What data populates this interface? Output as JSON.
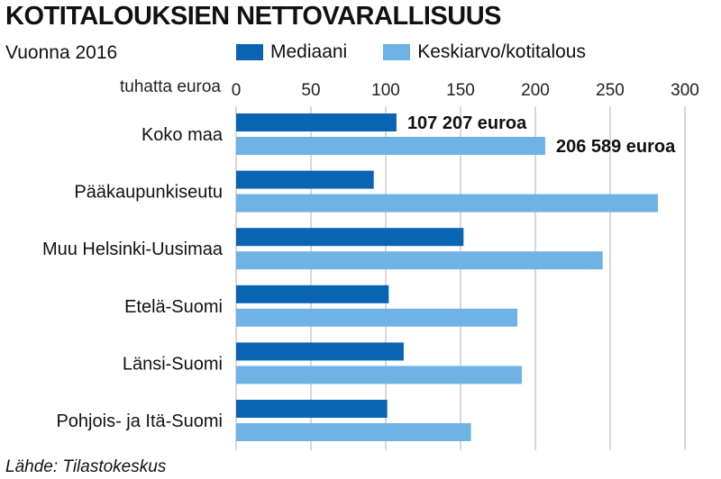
{
  "title": "KOTITALOUKSIEN NETTOVARALLISUUS",
  "subtitle": "Vuonna 2016",
  "unit_label": "tuhatta euroa",
  "source": "Lähde: Tilastokeskus",
  "colors": {
    "median": "#0a64b4",
    "mean": "#6fb3e6",
    "grid": "#b0b0b0"
  },
  "chart_data": {
    "type": "bar",
    "orientation": "horizontal",
    "title": "KOTITALOUKSIEN NETTOVARALLISUUS",
    "subtitle": "Vuonna 2016",
    "xlabel": "tuhatta euroa",
    "xlim": [
      0,
      300
    ],
    "xticks": [
      0,
      50,
      100,
      150,
      200,
      250,
      300
    ],
    "grid": true,
    "legend": "top",
    "categories": [
      "Koko maa",
      "Pääkaupunkiseutu",
      "Muu Helsinki-Uusimaa",
      "Etelä-Suomi",
      "Länsi-Suomi",
      "Pohjois- ja Itä-Suomi"
    ],
    "series": [
      {
        "name": "Mediaani",
        "values": [
          107.2,
          92,
          152,
          102,
          112,
          101
        ]
      },
      {
        "name": "Keskiarvo/kotitalous",
        "values": [
          206.6,
          282,
          245,
          188,
          191,
          157
        ]
      }
    ],
    "annotations": [
      {
        "category": "Koko maa",
        "series": "Mediaani",
        "text": "107 207 euroa"
      },
      {
        "category": "Koko maa",
        "series": "Keskiarvo/kotitalous",
        "text": "206 589 euroa"
      }
    ]
  }
}
